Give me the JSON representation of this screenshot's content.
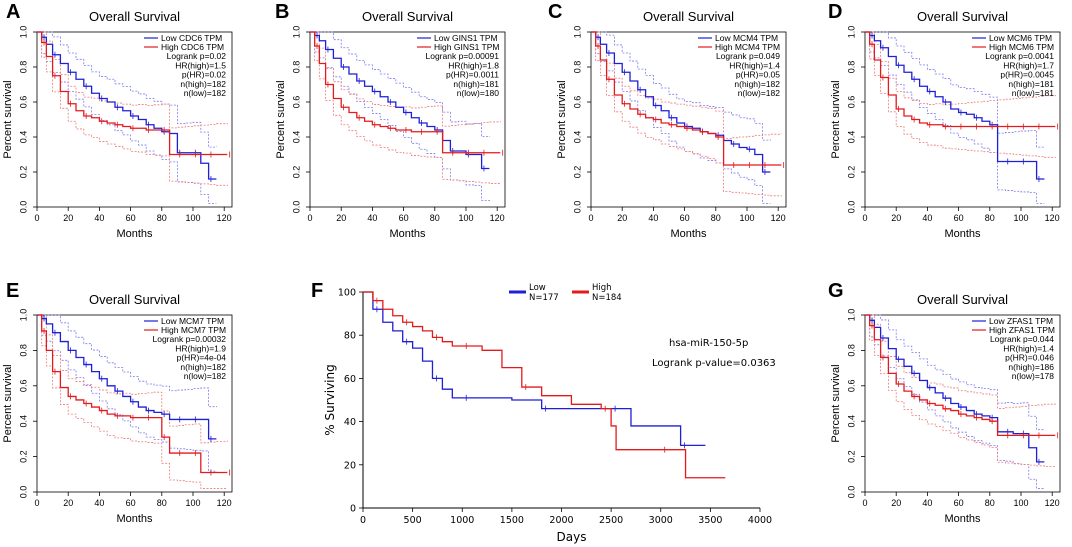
{
  "colors": {
    "low": "#1f1fd6",
    "high": "#e41a1c",
    "low_ci": "#7b7bf0",
    "high_ci": "#f07a7a"
  },
  "chart_data": [
    {
      "panel": "A",
      "type": "line",
      "title": "Overall Survival",
      "xlabel": "Months",
      "ylabel": "Percent survival",
      "xlim": [
        0,
        125
      ],
      "ylim": [
        0,
        1.0
      ],
      "xticks": [
        "0",
        "20",
        "40",
        "60",
        "80",
        "100",
        "120"
      ],
      "yticks": [
        "0.0",
        "0.2",
        "0.4",
        "0.6",
        "0.8",
        "1.0"
      ],
      "legend": [
        "Low CDC6 TPM",
        "High CDC6 TPM"
      ],
      "stats": [
        "Logrank p=0.02",
        "HR(high)=1.5",
        "p(HR)=0.02",
        "n(high)=182",
        "n(low)=182"
      ],
      "series": [
        {
          "name": "Low CDC6 TPM",
          "x": [
            0,
            3,
            6,
            10,
            15,
            20,
            25,
            30,
            35,
            40,
            45,
            50,
            55,
            60,
            65,
            70,
            75,
            80,
            85,
            90,
            95,
            100,
            105,
            110,
            115
          ],
          "y": [
            1.0,
            0.97,
            0.93,
            0.87,
            0.82,
            0.77,
            0.73,
            0.69,
            0.65,
            0.62,
            0.6,
            0.57,
            0.55,
            0.52,
            0.5,
            0.47,
            0.45,
            0.43,
            0.42,
            0.31,
            0.31,
            0.31,
            0.25,
            0.16,
            0.16
          ]
        },
        {
          "name": "High CDC6 TPM",
          "x": [
            0,
            3,
            6,
            10,
            15,
            20,
            25,
            30,
            35,
            40,
            45,
            50,
            55,
            60,
            65,
            70,
            75,
            80,
            85,
            90,
            95,
            100,
            105,
            110,
            115,
            122
          ],
          "y": [
            1.0,
            0.94,
            0.86,
            0.75,
            0.66,
            0.59,
            0.55,
            0.52,
            0.51,
            0.49,
            0.48,
            0.47,
            0.46,
            0.45,
            0.45,
            0.44,
            0.44,
            0.44,
            0.3,
            0.3,
            0.3,
            0.3,
            0.3,
            0.3,
            0.3,
            0.3
          ]
        }
      ]
    },
    {
      "panel": "B",
      "type": "line",
      "title": "Overall Survival",
      "xlabel": "Months",
      "ylabel": "Percent survival",
      "xlim": [
        0,
        125
      ],
      "ylim": [
        0,
        1.0
      ],
      "xticks": [
        "0",
        "20",
        "40",
        "60",
        "80",
        "100",
        "120"
      ],
      "yticks": [
        "0.0",
        "0.2",
        "0.4",
        "0.6",
        "0.8",
        "1.0"
      ],
      "legend": [
        "Low GINS1 TPM",
        "High GINS1 TPM"
      ],
      "stats": [
        "Logrank p=0.00091",
        "HR(high)=1.8",
        "p(HR)=0.0011",
        "n(high)=181",
        "n(low)=180"
      ],
      "series": [
        {
          "name": "Low GINS1 TPM",
          "x": [
            0,
            3,
            6,
            10,
            15,
            20,
            25,
            30,
            35,
            40,
            45,
            50,
            55,
            60,
            65,
            70,
            75,
            80,
            85,
            90,
            95,
            100,
            105,
            110,
            115
          ],
          "y": [
            1.0,
            0.98,
            0.95,
            0.9,
            0.85,
            0.8,
            0.76,
            0.72,
            0.69,
            0.66,
            0.63,
            0.6,
            0.57,
            0.54,
            0.51,
            0.48,
            0.46,
            0.44,
            0.38,
            0.32,
            0.32,
            0.3,
            0.3,
            0.22,
            0.22
          ]
        },
        {
          "name": "High GINS1 TPM",
          "x": [
            0,
            3,
            6,
            10,
            15,
            20,
            25,
            30,
            35,
            40,
            45,
            50,
            55,
            60,
            65,
            70,
            75,
            80,
            85,
            90,
            95,
            100,
            105,
            110,
            115,
            122
          ],
          "y": [
            1.0,
            0.92,
            0.82,
            0.7,
            0.62,
            0.57,
            0.54,
            0.51,
            0.49,
            0.47,
            0.46,
            0.45,
            0.44,
            0.44,
            0.43,
            0.43,
            0.43,
            0.43,
            0.31,
            0.31,
            0.31,
            0.31,
            0.31,
            0.31,
            0.31,
            0.31
          ]
        }
      ]
    },
    {
      "panel": "C",
      "type": "line",
      "title": "Overall Survival",
      "xlabel": "Months",
      "ylabel": "Percent survival",
      "xlim": [
        0,
        125
      ],
      "ylim": [
        0,
        1.0
      ],
      "xticks": [
        "0",
        "20",
        "40",
        "60",
        "80",
        "100",
        "120"
      ],
      "yticks": [
        "0.0",
        "0.2",
        "0.4",
        "0.6",
        "0.8",
        "1.0"
      ],
      "legend": [
        "Low MCM4 TPM",
        "High MCM4 TPM"
      ],
      "stats": [
        "Logrank p=0.049",
        "HR(high)=1.4",
        "p(HR)=0.05",
        "n(high)=182",
        "n(low)=182"
      ],
      "series": [
        {
          "name": "Low MCM4 TPM",
          "x": [
            0,
            3,
            6,
            10,
            15,
            20,
            25,
            30,
            35,
            40,
            45,
            50,
            55,
            60,
            65,
            70,
            75,
            80,
            85,
            90,
            95,
            100,
            105,
            110,
            115
          ],
          "y": [
            1.0,
            0.97,
            0.93,
            0.88,
            0.82,
            0.77,
            0.72,
            0.67,
            0.63,
            0.58,
            0.55,
            0.51,
            0.48,
            0.46,
            0.45,
            0.43,
            0.42,
            0.41,
            0.38,
            0.36,
            0.34,
            0.33,
            0.3,
            0.2,
            0.2
          ]
        },
        {
          "name": "High MCM4 TPM",
          "x": [
            0,
            3,
            6,
            10,
            15,
            20,
            25,
            30,
            35,
            40,
            45,
            50,
            55,
            60,
            65,
            70,
            75,
            80,
            85,
            90,
            95,
            100,
            105,
            110,
            115,
            122
          ],
          "y": [
            1.0,
            0.92,
            0.84,
            0.73,
            0.64,
            0.59,
            0.56,
            0.53,
            0.51,
            0.5,
            0.48,
            0.47,
            0.46,
            0.45,
            0.44,
            0.43,
            0.42,
            0.4,
            0.24,
            0.24,
            0.24,
            0.24,
            0.24,
            0.24,
            0.24,
            0.24
          ]
        }
      ]
    },
    {
      "panel": "D",
      "type": "line",
      "title": "Overall Survival",
      "xlabel": "Months",
      "ylabel": "Percent survival",
      "xlim": [
        0,
        125
      ],
      "ylim": [
        0,
        1.0
      ],
      "xticks": [
        "0",
        "20",
        "40",
        "60",
        "80",
        "100",
        "120"
      ],
      "yticks": [
        "0.0",
        "0.2",
        "0.4",
        "0.6",
        "0.8",
        "1.0"
      ],
      "legend": [
        "Low MCM6 TPM",
        "High MCM6 TPM"
      ],
      "stats": [
        "Logrank p=0.0041",
        "HR(high)=1.7",
        "p(HR)=0.0045",
        "n(high)=181",
        "n(low)=181"
      ],
      "series": [
        {
          "name": "Low MCM6 TPM",
          "x": [
            0,
            3,
            6,
            10,
            15,
            20,
            25,
            30,
            35,
            40,
            45,
            50,
            55,
            60,
            65,
            70,
            75,
            80,
            85,
            90,
            95,
            100,
            105,
            110,
            115
          ],
          "y": [
            1.0,
            0.98,
            0.95,
            0.91,
            0.86,
            0.81,
            0.77,
            0.73,
            0.69,
            0.66,
            0.63,
            0.6,
            0.56,
            0.54,
            0.53,
            0.51,
            0.49,
            0.47,
            0.26,
            0.26,
            0.26,
            0.26,
            0.26,
            0.16,
            0.16
          ]
        },
        {
          "name": "High MCM6 TPM",
          "x": [
            0,
            3,
            6,
            10,
            15,
            20,
            25,
            30,
            35,
            40,
            45,
            50,
            55,
            60,
            65,
            70,
            75,
            80,
            85,
            90,
            95,
            100,
            105,
            110,
            115,
            122
          ],
          "y": [
            1.0,
            0.93,
            0.84,
            0.74,
            0.64,
            0.56,
            0.52,
            0.5,
            0.48,
            0.47,
            0.47,
            0.46,
            0.46,
            0.46,
            0.46,
            0.46,
            0.46,
            0.46,
            0.46,
            0.46,
            0.46,
            0.46,
            0.46,
            0.46,
            0.46,
            0.46
          ]
        }
      ]
    },
    {
      "panel": "E",
      "type": "line",
      "title": "Overall Survival",
      "xlabel": "Months",
      "ylabel": "Percent survival",
      "xlim": [
        0,
        125
      ],
      "ylim": [
        0,
        1.0
      ],
      "xticks": [
        "0",
        "20",
        "40",
        "60",
        "80",
        "100",
        "120"
      ],
      "yticks": [
        "0.0",
        "0.2",
        "0.4",
        "0.6",
        "0.8",
        "1.0"
      ],
      "legend": [
        "Low MCM7 TPM",
        "High MCM7 TPM"
      ],
      "stats": [
        "Logrank p=0.00032",
        "HR(high)=1.9",
        "p(HR)=4e-04",
        "n(high)=182",
        "n(low)=182"
      ],
      "series": [
        {
          "name": "Low MCM7 TPM",
          "x": [
            0,
            3,
            6,
            10,
            15,
            20,
            25,
            30,
            35,
            40,
            45,
            50,
            55,
            60,
            65,
            70,
            75,
            80,
            85,
            90,
            95,
            100,
            105,
            110,
            115
          ],
          "y": [
            1.0,
            0.98,
            0.95,
            0.9,
            0.85,
            0.8,
            0.76,
            0.72,
            0.68,
            0.64,
            0.6,
            0.57,
            0.54,
            0.51,
            0.48,
            0.46,
            0.45,
            0.44,
            0.41,
            0.41,
            0.41,
            0.41,
            0.41,
            0.3,
            0.3
          ]
        },
        {
          "name": "High MCM7 TPM",
          "x": [
            0,
            3,
            6,
            10,
            15,
            20,
            25,
            30,
            35,
            40,
            45,
            50,
            55,
            60,
            65,
            70,
            75,
            80,
            85,
            90,
            95,
            100,
            105,
            110,
            115,
            122
          ],
          "y": [
            1.0,
            0.91,
            0.8,
            0.68,
            0.59,
            0.54,
            0.52,
            0.5,
            0.48,
            0.46,
            0.44,
            0.43,
            0.43,
            0.42,
            0.42,
            0.42,
            0.42,
            0.31,
            0.22,
            0.22,
            0.22,
            0.22,
            0.11,
            0.11,
            0.11,
            0.11
          ]
        }
      ]
    },
    {
      "panel": "F",
      "type": "line",
      "xlabel": "Days",
      "ylabel": "% Surviving",
      "xlim": [
        0,
        4000
      ],
      "ylim": [
        0,
        100
      ],
      "xticks": [
        "0",
        "500",
        "1000",
        "1500",
        "2000",
        "2500",
        "3000",
        "3500",
        "4000"
      ],
      "yticks": [
        "0",
        "20",
        "40",
        "60",
        "80",
        "100"
      ],
      "legend": [
        "Low",
        "High"
      ],
      "legend_counts": [
        "N=177",
        "N=184"
      ],
      "annotations": [
        "hsa-miR-150-5p",
        "Logrank p-value=0.0363"
      ],
      "series": [
        {
          "name": "Low",
          "x": [
            0,
            100,
            200,
            300,
            400,
            500,
            600,
            700,
            800,
            900,
            1000,
            1200,
            1500,
            1800,
            2100,
            2400,
            2500,
            2700,
            3000,
            3200,
            3250,
            3450
          ],
          "y": [
            100,
            92,
            86,
            82,
            77,
            74,
            68,
            60,
            55,
            51,
            51,
            51,
            50,
            46,
            46,
            46,
            46,
            38,
            38,
            29,
            29,
            29
          ]
        },
        {
          "name": "High",
          "x": [
            0,
            100,
            200,
            300,
            400,
            500,
            600,
            700,
            800,
            900,
            1000,
            1200,
            1400,
            1600,
            1800,
            2100,
            2400,
            2500,
            2550,
            3000,
            3250,
            3650
          ],
          "y": [
            100,
            96,
            92,
            89,
            86,
            84,
            82,
            79,
            77,
            75,
            75,
            73,
            65,
            56,
            52,
            48,
            46,
            38,
            27,
            27,
            14,
            14
          ]
        }
      ]
    },
    {
      "panel": "G",
      "type": "line",
      "title": "Overall Survival",
      "xlabel": "Months",
      "ylabel": "Percent survival",
      "xlim": [
        0,
        125
      ],
      "ylim": [
        0,
        1.0
      ],
      "xticks": [
        "0",
        "20",
        "40",
        "60",
        "80",
        "100",
        "120"
      ],
      "yticks": [
        "0.0",
        "0.2",
        "0.4",
        "0.6",
        "0.8",
        "1.0"
      ],
      "legend": [
        "Low ZFAS1 TPM",
        "High ZFAS1 TPM"
      ],
      "stats": [
        "Logrank p=0.044",
        "HR(high)=1.4",
        "p(HR)=0.046",
        "n(high)=186",
        "n(low)=178"
      ],
      "series": [
        {
          "name": "Low ZFAS1 TPM",
          "x": [
            0,
            3,
            6,
            10,
            15,
            20,
            25,
            30,
            35,
            40,
            45,
            50,
            55,
            60,
            65,
            70,
            75,
            80,
            85,
            90,
            95,
            100,
            105,
            110,
            115
          ],
          "y": [
            1.0,
            0.97,
            0.93,
            0.87,
            0.81,
            0.75,
            0.71,
            0.67,
            0.63,
            0.59,
            0.56,
            0.53,
            0.5,
            0.48,
            0.46,
            0.44,
            0.43,
            0.42,
            0.34,
            0.34,
            0.33,
            0.33,
            0.25,
            0.17,
            0.17
          ]
        },
        {
          "name": "High ZFAS1 TPM",
          "x": [
            0,
            3,
            6,
            10,
            15,
            20,
            25,
            30,
            35,
            40,
            45,
            50,
            55,
            60,
            65,
            70,
            75,
            80,
            85,
            90,
            95,
            100,
            105,
            110,
            115,
            122
          ],
          "y": [
            1.0,
            0.94,
            0.86,
            0.76,
            0.67,
            0.61,
            0.57,
            0.54,
            0.52,
            0.5,
            0.49,
            0.47,
            0.46,
            0.44,
            0.43,
            0.42,
            0.41,
            0.4,
            0.32,
            0.32,
            0.32,
            0.32,
            0.32,
            0.32,
            0.32,
            0.32
          ]
        }
      ]
    }
  ]
}
